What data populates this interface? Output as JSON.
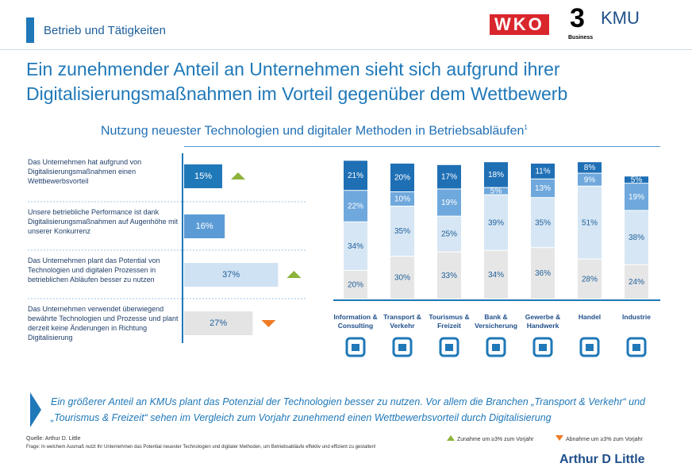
{
  "header": {
    "section": "Betrieb und Tätigkeiten",
    "logo_left": "WKO",
    "logo_mid": "Business",
    "logo_right": "KMU"
  },
  "title": "Ein zunehmender Anteil an Unternehmen sieht sich aufgrund ihrer Digitalisierungsmaßnahmen im Vorteil gegenüber dem Wettbewerb",
  "subtitle": "Nutzung neuester Technologien und digitaler Methoden in Betriebsabläufen",
  "subtitle_note": "1",
  "chart_data": [
    {
      "type": "hbar",
      "categories": [
        "Das Unternehmen hat aufgrund von Digitalisierungsmaßnahmen einen Wettbewerbsvorteil",
        "Unsere betriebliche Performance ist dank Digitalisierungsmaßnahmen auf Augenhöhe mit unserer Konkurrenz",
        "Das Unternehmen plant das Potential von Technologien und digitalen Prozessen in betrieblichen Abläufen besser zu nutzen",
        "Das Unternehmen verwendet überwiegend bewährte Technologien und Prozesse und plant derzeit keine Änderungen in Richtung Digitalisierung"
      ],
      "values": [
        15,
        16,
        37,
        27
      ],
      "value_labels": [
        "15%",
        "16%",
        "37%",
        "27%"
      ],
      "colors": [
        "#1f78b8",
        "#5b9bd5",
        "#cfe2f3",
        "#e4e4e4"
      ],
      "trend": [
        "up",
        null,
        "up",
        "down"
      ],
      "xlim": [
        0,
        40
      ]
    },
    {
      "type": "stacked_bar",
      "categories": [
        "Information & Consulting",
        "Transport & Verkehr",
        "Tourismus & Freizeit",
        "Bank & Versicherung",
        "Gewerbe & Handwerk",
        "Handel",
        "Industrie"
      ],
      "series": [
        {
          "color": "#e6e6e6",
          "values": [
            20,
            30,
            33,
            34,
            36,
            28,
            24
          ],
          "value_labels": [
            "20%",
            "30%",
            "33%",
            "34%",
            "36%",
            "28%",
            "24%"
          ]
        },
        {
          "color": "#d6e6f4",
          "values": [
            34,
            35,
            25,
            39,
            35,
            51,
            38
          ],
          "value_labels": [
            "34%",
            "35%",
            "25%",
            "39%",
            "35%",
            "51%",
            "38%"
          ]
        },
        {
          "color": "#6fa8dc",
          "values": [
            22,
            10,
            19,
            5,
            13,
            9,
            19
          ],
          "value_labels": [
            "22%",
            "10%",
            "19%",
            "5%",
            "13%",
            "9%",
            "19%"
          ]
        },
        {
          "color": "#1f6fb5",
          "values": [
            21,
            20,
            17,
            18,
            11,
            8,
            5
          ],
          "value_labels": [
            "21%",
            "20%",
            "17%",
            "18%",
            "11%",
            "8%",
            "5%"
          ]
        }
      ],
      "ylim": [
        0,
        100
      ]
    }
  ],
  "summary": "Ein größerer Anteil an KMUs plant das Potenzial der Technologien besser zu nutzen. Vor allem die Branchen „Transport & Verkehr“ und „Tourismus & Freizeit“ sehen im Vergleich zum Vorjahr zunehmend einen Wettbewerbsvorteil durch Digitalisierung",
  "source": "Quelle: Arthur D. Little",
  "note": "Frage: In welchem Ausmaß nutzt Ihr Unternehmen das Potential neuester Technologien und digitaler Methoden, um Betriebsabläufe effektiv und effizient zu gestalten!",
  "legend": {
    "up": "Zunahme um ≥3% zum Vorjahr",
    "down": "Abnahme um ≥3% zum Vorjahr",
    "up_color": "#8db33a",
    "down_color": "#f07b26"
  },
  "footer_logo": "Arthur D Little"
}
